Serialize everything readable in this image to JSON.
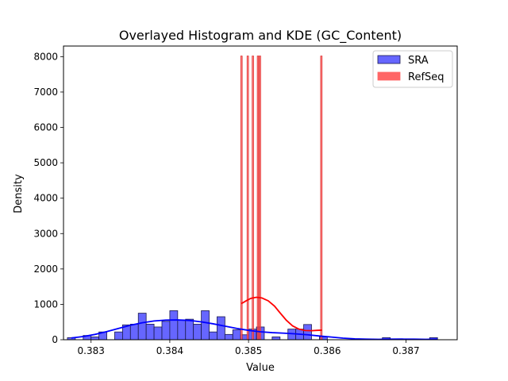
{
  "chart_data": {
    "type": "bar",
    "title": "Overlayed Histogram and KDE (GC_Content)",
    "xlabel": "Value",
    "ylabel": "Density",
    "xlim": [
      0.38265,
      0.38765
    ],
    "ylim": [
      0,
      8300
    ],
    "x_ticks": [
      0.383,
      0.384,
      0.385,
      0.386,
      0.387
    ],
    "x_tick_labels": [
      "0.383",
      "0.384",
      "0.385",
      "0.386",
      "0.387"
    ],
    "y_ticks": [
      0,
      1000,
      2000,
      3000,
      4000,
      5000,
      6000,
      7000,
      8000
    ],
    "y_tick_labels": [
      "0",
      "1000",
      "2000",
      "3000",
      "4000",
      "5000",
      "6000",
      "7000",
      "8000"
    ],
    "legend_position": "top-right",
    "series": [
      {
        "name": "SRA",
        "kind": "histogram",
        "fill": "#6666ff",
        "edge": "#1a1a4d",
        "bin_width": 0.0001,
        "bins": [
          {
            "x": 0.38275,
            "y": 60
          },
          {
            "x": 0.38285,
            "y": 0
          },
          {
            "x": 0.38295,
            "y": 120
          },
          {
            "x": 0.38305,
            "y": 80
          },
          {
            "x": 0.38315,
            "y": 220
          },
          {
            "x": 0.38325,
            "y": 0
          },
          {
            "x": 0.38335,
            "y": 220
          },
          {
            "x": 0.38345,
            "y": 420
          },
          {
            "x": 0.38355,
            "y": 440
          },
          {
            "x": 0.38365,
            "y": 750
          },
          {
            "x": 0.38375,
            "y": 440
          },
          {
            "x": 0.38385,
            "y": 360
          },
          {
            "x": 0.38395,
            "y": 520
          },
          {
            "x": 0.38405,
            "y": 820
          },
          {
            "x": 0.38415,
            "y": 560
          },
          {
            "x": 0.38425,
            "y": 580
          },
          {
            "x": 0.38435,
            "y": 440
          },
          {
            "x": 0.38445,
            "y": 820
          },
          {
            "x": 0.38455,
            "y": 220
          },
          {
            "x": 0.38465,
            "y": 650
          },
          {
            "x": 0.38475,
            "y": 150
          },
          {
            "x": 0.38485,
            "y": 280
          },
          {
            "x": 0.38495,
            "y": 140
          },
          {
            "x": 0.38505,
            "y": 300
          },
          {
            "x": 0.38515,
            "y": 360
          },
          {
            "x": 0.38525,
            "y": 0
          },
          {
            "x": 0.38535,
            "y": 80
          },
          {
            "x": 0.38545,
            "y": 0
          },
          {
            "x": 0.38555,
            "y": 300
          },
          {
            "x": 0.38565,
            "y": 300
          },
          {
            "x": 0.38575,
            "y": 430
          },
          {
            "x": 0.38585,
            "y": 0
          },
          {
            "x": 0.38595,
            "y": 80
          },
          {
            "x": 0.38675,
            "y": 60
          },
          {
            "x": 0.38735,
            "y": 60
          }
        ]
      },
      {
        "name": "RefSeq",
        "kind": "histogram",
        "fill": "#ff6666",
        "edge": "#cc0000",
        "bars": [
          {
            "x": 0.38491,
            "y": 8020
          },
          {
            "x": 0.38499,
            "y": 8020
          },
          {
            "x": 0.385055,
            "y": 8020
          },
          {
            "x": 0.38512,
            "y": 8020
          },
          {
            "x": 0.385145,
            "y": 8020
          },
          {
            "x": 0.385925,
            "y": 8020
          }
        ]
      }
    ],
    "kde": [
      {
        "series": "SRA",
        "color": "#0000ff",
        "points": [
          [
            0.38275,
            50
          ],
          [
            0.3829,
            90
          ],
          [
            0.38305,
            150
          ],
          [
            0.3832,
            230
          ],
          [
            0.38335,
            320
          ],
          [
            0.3835,
            410
          ],
          [
            0.38365,
            480
          ],
          [
            0.3838,
            530
          ],
          [
            0.38395,
            555
          ],
          [
            0.3841,
            560
          ],
          [
            0.38425,
            545
          ],
          [
            0.3844,
            505
          ],
          [
            0.38455,
            450
          ],
          [
            0.3847,
            385
          ],
          [
            0.38485,
            320
          ],
          [
            0.385,
            265
          ],
          [
            0.38515,
            225
          ],
          [
            0.3853,
            200
          ],
          [
            0.38545,
            185
          ],
          [
            0.3856,
            165
          ],
          [
            0.38575,
            140
          ],
          [
            0.3859,
            105
          ],
          [
            0.38605,
            75
          ],
          [
            0.3862,
            45
          ],
          [
            0.38635,
            25
          ],
          [
            0.3865,
            15
          ],
          [
            0.38665,
            12
          ],
          [
            0.3868,
            15
          ],
          [
            0.38695,
            18
          ],
          [
            0.3871,
            15
          ],
          [
            0.38725,
            12
          ],
          [
            0.3874,
            15
          ]
        ]
      },
      {
        "series": "RefSeq",
        "color": "#ff0000",
        "points": [
          [
            0.38491,
            1020
          ],
          [
            0.38497,
            1100
          ],
          [
            0.38503,
            1170
          ],
          [
            0.3851,
            1200
          ],
          [
            0.38517,
            1180
          ],
          [
            0.38525,
            1100
          ],
          [
            0.38533,
            950
          ],
          [
            0.3854,
            760
          ],
          [
            0.38548,
            550
          ],
          [
            0.38556,
            390
          ],
          [
            0.38564,
            300
          ],
          [
            0.38572,
            260
          ],
          [
            0.3858,
            255
          ],
          [
            0.38587,
            265
          ],
          [
            0.38593,
            270
          ]
        ]
      }
    ]
  }
}
